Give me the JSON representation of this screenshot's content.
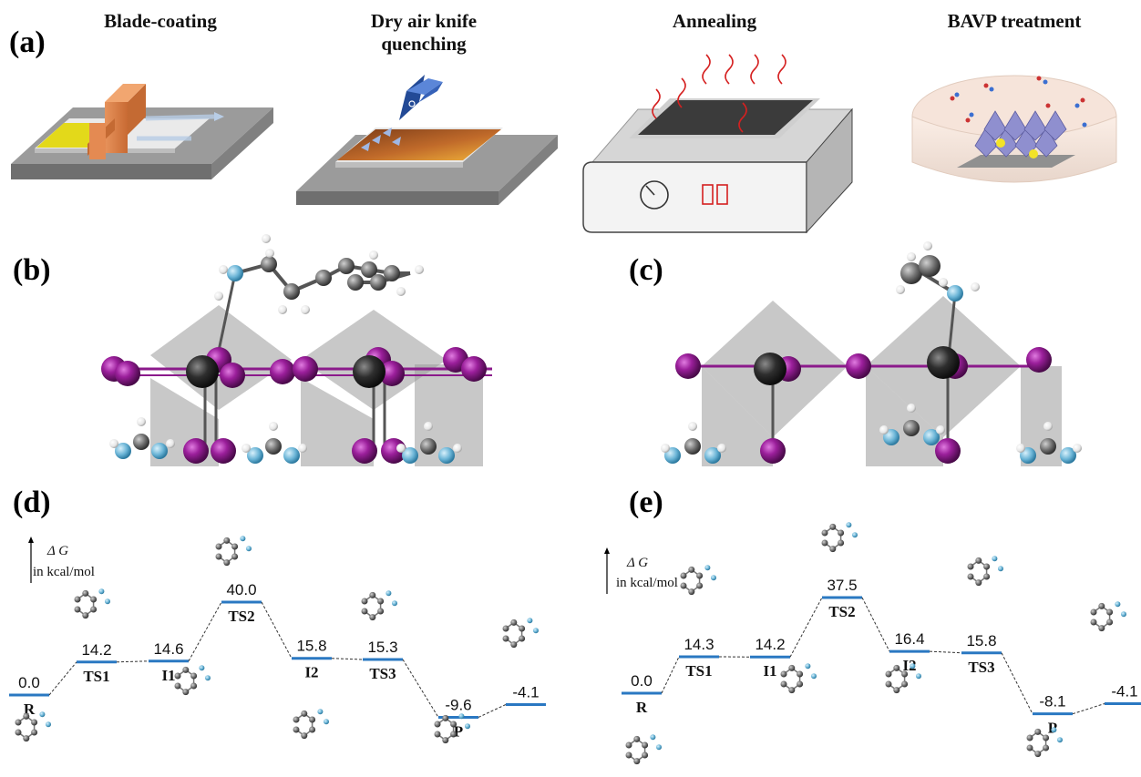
{
  "panels": {
    "a": "(a)",
    "b": "(b)",
    "c": "(c)",
    "d": "(d)",
    "e": "(e)"
  },
  "process_steps": [
    {
      "title_lines": [
        "Blade-coating"
      ]
    },
    {
      "title_lines": [
        "Dry air knife",
        "quenching"
      ]
    },
    {
      "title_lines": [
        "Annealing"
      ]
    },
    {
      "title_lines": [
        "BAVP treatment"
      ]
    }
  ],
  "energy_axis": {
    "symbol": "Δ G",
    "unit": "in kcal/mol"
  },
  "diagram_d": {
    "states": [
      {
        "label": "R",
        "value": "0.0",
        "dg": 0.0
      },
      {
        "label": "TS1",
        "value": "14.2",
        "dg": 14.2
      },
      {
        "label": "I1",
        "value": "14.6",
        "dg": 14.6
      },
      {
        "label": "TS2",
        "value": "40.0",
        "dg": 40.0
      },
      {
        "label": "I2",
        "value": "15.8",
        "dg": 15.8
      },
      {
        "label": "TS3",
        "value": "15.3",
        "dg": 15.3
      },
      {
        "label": "P",
        "value": "-9.6",
        "dg": -9.6
      },
      {
        "label": "",
        "value": "-4.1",
        "dg": -4.1
      }
    ]
  },
  "diagram_e": {
    "states": [
      {
        "label": "R",
        "value": "0.0",
        "dg": 0.0
      },
      {
        "label": "TS1",
        "value": "14.3",
        "dg": 14.3
      },
      {
        "label": "I1",
        "value": "14.2",
        "dg": 14.2
      },
      {
        "label": "TS2",
        "value": "37.5",
        "dg": 37.5
      },
      {
        "label": "I2",
        "value": "16.4",
        "dg": 16.4
      },
      {
        "label": "TS3",
        "value": "15.8",
        "dg": 15.8
      },
      {
        "label": "P",
        "value": "-8.1",
        "dg": -8.1
      },
      {
        "label": "",
        "value": "-4.1",
        "dg": -4.1
      }
    ]
  },
  "colors": {
    "level": "#2a78c2",
    "iodine": "#8b1a8b",
    "lead": "#3a3a3a",
    "nitrogen": "#6ab4d6",
    "carbon": "#7a7a7a",
    "hydrogen": "#e8e8e8",
    "octahedron": "#9a9a9a",
    "substrate": "#8c8c8c"
  }
}
